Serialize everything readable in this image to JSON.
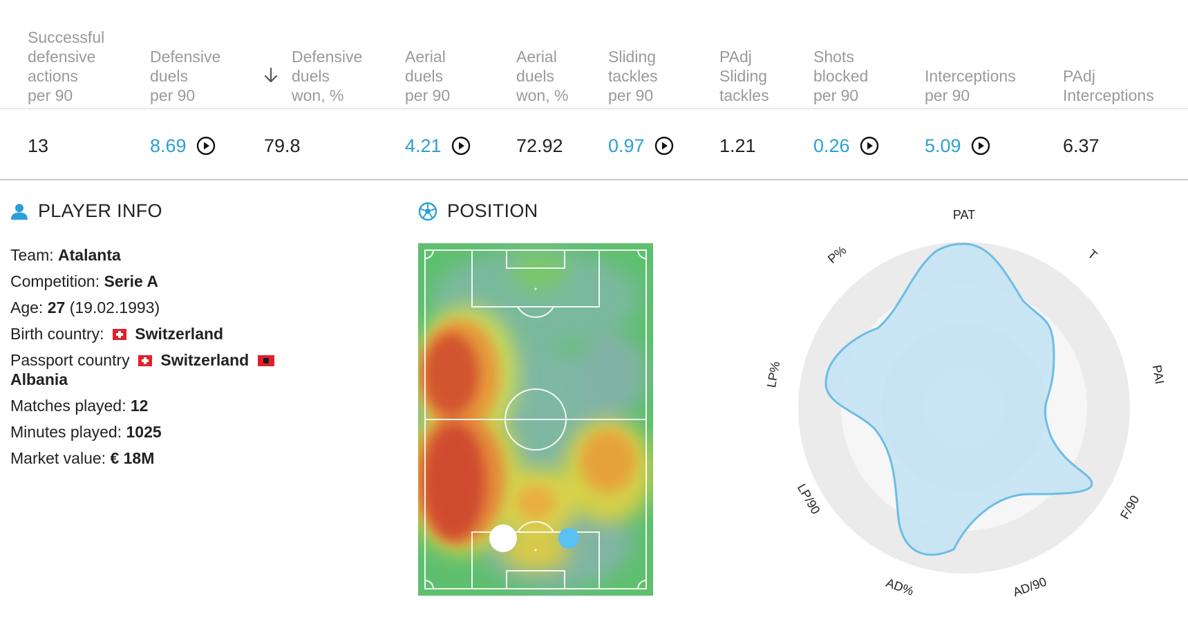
{
  "table": {
    "headers": [
      {
        "label": "Successful\ndefensive\nactions\nper 90"
      },
      {
        "label": "Defensive\nduels\nper 90"
      },
      {
        "label": "Defensive\nduels\nwon, %",
        "sorted": true
      },
      {
        "label": "Aerial\nduels\nper 90"
      },
      {
        "label": "Aerial\nduels\nwon, %"
      },
      {
        "label": "Sliding\ntackles\nper 90"
      },
      {
        "label": "PAdj\nSliding\ntackles"
      },
      {
        "label": "Shots\nblocked\nper 90"
      },
      {
        "label": "Interceptions\nper 90"
      },
      {
        "label": "PAdj\nInterceptions"
      }
    ],
    "row": [
      {
        "value": "13",
        "link": false
      },
      {
        "value": "8.69",
        "link": true
      },
      {
        "value": "79.8",
        "link": false
      },
      {
        "value": "4.21",
        "link": true
      },
      {
        "value": "72.92",
        "link": false
      },
      {
        "value": "0.97",
        "link": true
      },
      {
        "value": "1.21",
        "link": false
      },
      {
        "value": "0.26",
        "link": true
      },
      {
        "value": "5.09",
        "link": true
      },
      {
        "value": "6.37",
        "link": false
      }
    ]
  },
  "player_info": {
    "title": "PLAYER INFO",
    "team_label": "Team:",
    "team": "Atalanta",
    "competition_label": "Competition:",
    "competition": "Serie A",
    "age_label": "Age:",
    "age": "27",
    "birth_date": "(19.02.1993)",
    "birth_country_label": "Birth country:",
    "birth_country": "Switzerland",
    "passport_label": "Passport country",
    "passport_1": "Switzerland",
    "passport_2": "Albania",
    "matches_label": "Matches played:",
    "matches": "12",
    "minutes_label": "Minutes played:",
    "minutes": "1025",
    "market_label": "Market value:",
    "market_value": "€ 18M"
  },
  "position": {
    "title": "POSITION"
  },
  "radar": {
    "labels": [
      "PAT",
      "T",
      "PAI",
      "F/90",
      "AD/90",
      "AD%",
      "LP/90",
      "LP%",
      "P%"
    ]
  },
  "colors": {
    "accent": "#2a9fd8",
    "pitch_green": "#5fbf6f",
    "radar_fill": "#c6e3f2",
    "radar_stroke": "#6cbde6",
    "radar_ring_outer": "#ebebeb",
    "radar_ring_mid": "#e1e1e1"
  }
}
